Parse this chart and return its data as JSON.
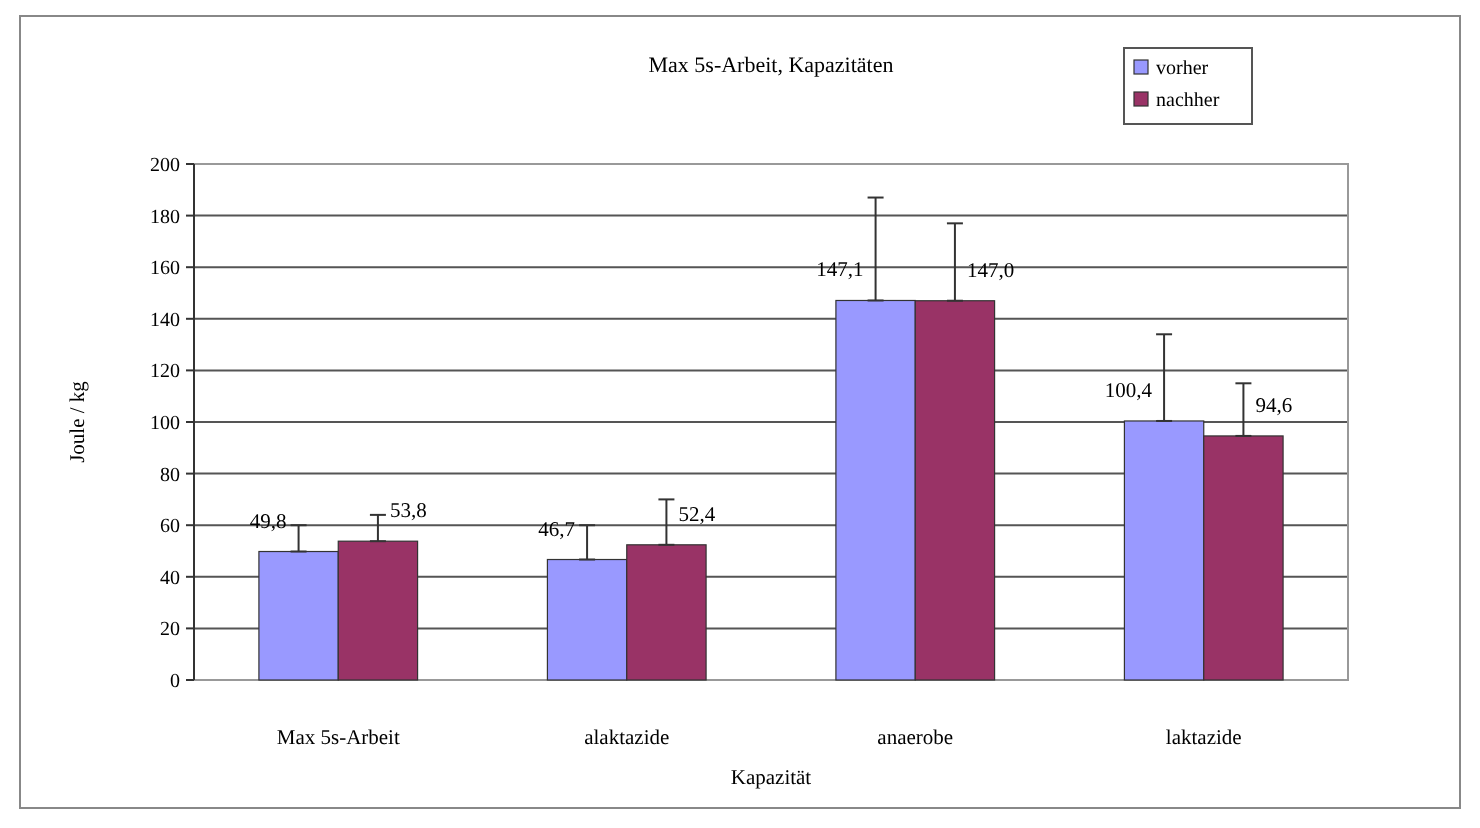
{
  "chart_data": {
    "type": "bar",
    "title": "Max 5s-Arbeit, Kapazitäten",
    "xlabel": "Kapazität",
    "ylabel": "Joule / kg",
    "categories": [
      "Max 5s-Arbeit",
      "alaktazide",
      "anaerobe",
      "laktazide"
    ],
    "series": [
      {
        "name": "vorher",
        "color": "#9999ff",
        "values": [
          49.8,
          46.7,
          147.1,
          100.4
        ],
        "errors": [
          [
            49.8,
            60
          ],
          [
            46.7,
            60
          ],
          [
            147.1,
            187
          ],
          [
            100.4,
            134
          ]
        ]
      },
      {
        "name": "nachher",
        "color": "#993366",
        "values": [
          53.8,
          52.4,
          147.0,
          94.6
        ],
        "errors": [
          [
            53.8,
            64
          ],
          [
            52.4,
            70
          ],
          [
            147.0,
            177
          ],
          [
            94.6,
            115
          ]
        ]
      }
    ],
    "value_labels": [
      [
        "49,8",
        "46,7",
        "147,1",
        "100,4"
      ],
      [
        "53,8",
        "52,4",
        "147,0",
        "94,6"
      ]
    ],
    "ylim": [
      0,
      200
    ],
    "yticks": [
      0,
      20,
      40,
      60,
      80,
      100,
      120,
      140,
      160,
      180,
      200
    ],
    "grid": "y",
    "legend": "top right"
  }
}
